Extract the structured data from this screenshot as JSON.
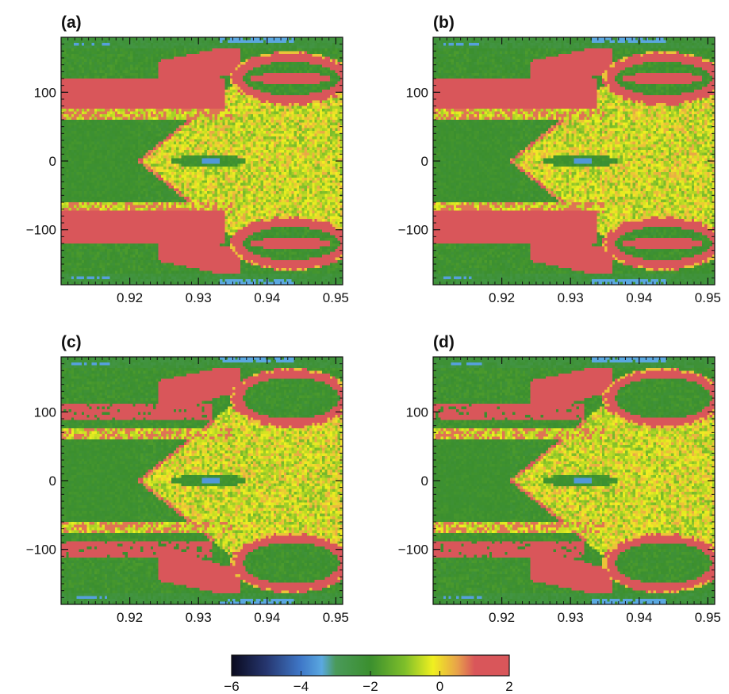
{
  "chart_data": {
    "type": "heatmap",
    "panels": [
      {
        "label": "(a)",
        "variant": "clean"
      },
      {
        "label": "(b)",
        "variant": "clean"
      },
      {
        "label": "(c)",
        "variant": "noisy"
      },
      {
        "label": "(d)",
        "variant": "noisy"
      }
    ],
    "x_range": [
      0.91,
      0.951
    ],
    "y_range": [
      -180,
      180
    ],
    "x_ticks": [
      0.92,
      0.93,
      0.94,
      0.95
    ],
    "x_tick_labels": [
      "0.92",
      "0.93",
      "0.94",
      "0.95"
    ],
    "y_ticks": [
      100,
      0,
      -100
    ],
    "y_tick_labels": [
      "100",
      "0",
      "−100"
    ],
    "colorbar": {
      "range": [
        -6,
        2
      ],
      "ticks": [
        -6,
        -4,
        -2,
        0,
        2
      ],
      "tick_labels": [
        "−6",
        "−4",
        "−2",
        "0",
        "2"
      ],
      "colors": [
        {
          "value": -6,
          "color": "#0a0a1e"
        },
        {
          "value": -5,
          "color": "#26366f"
        },
        {
          "value": -4,
          "color": "#3f78c8"
        },
        {
          "value": -3.4,
          "color": "#5aa8e0"
        },
        {
          "value": -3,
          "color": "#4a9a5a"
        },
        {
          "value": -2,
          "color": "#3b8f2e"
        },
        {
          "value": -1,
          "color": "#7fbf2a"
        },
        {
          "value": -0.2,
          "color": "#f0f020"
        },
        {
          "value": 0.5,
          "color": "#e8a24a"
        },
        {
          "value": 1,
          "color": "#d9565a"
        },
        {
          "value": 2,
          "color": "#d9565a"
        }
      ]
    },
    "grid": false,
    "legend": "bottom"
  }
}
